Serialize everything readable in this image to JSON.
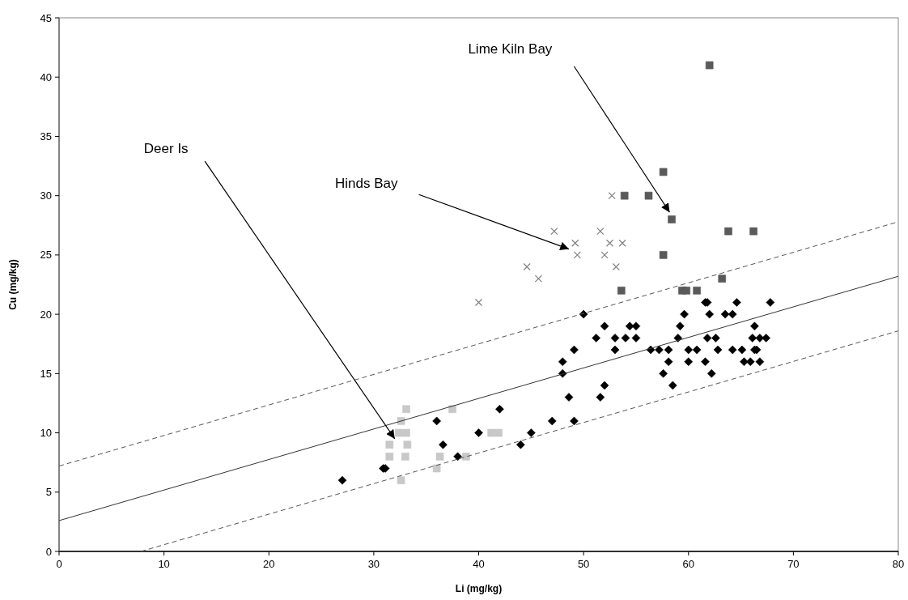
{
  "chart_data": {
    "type": "scatter",
    "xlabel": "Li (mg/kg)",
    "ylabel": "Cu (mg/kg)",
    "xlim": [
      0,
      80
    ],
    "ylim": [
      0,
      45
    ],
    "xticks": [
      0,
      10,
      20,
      30,
      40,
      50,
      60,
      70,
      80
    ],
    "yticks": [
      0,
      5,
      10,
      15,
      20,
      25,
      30,
      35,
      40,
      45
    ],
    "grid": false,
    "series": [
      {
        "marker": "diamond",
        "color": "#000000",
        "x": [
          27,
          30.9,
          31.1,
          36,
          36.6,
          38,
          40,
          42,
          44,
          45,
          47,
          48,
          48,
          48.6,
          49.1,
          49.1,
          50,
          51.2,
          51.6,
          52,
          52,
          53,
          53,
          54,
          54.4,
          55,
          55,
          56.4,
          57.2,
          57.6,
          58.1,
          58.1,
          58.5,
          59,
          59.2,
          59.6,
          60,
          60,
          60.8,
          61.6,
          61.8,
          61.6,
          61.8,
          62,
          62.2,
          62.6,
          62.8,
          63.5,
          64.2,
          64.2,
          64.6,
          65.1,
          65.3,
          65.9,
          66.3,
          66.1,
          66.5,
          66.3,
          66.8,
          66.8,
          67.4,
          67.8
        ],
        "values": [
          6,
          7,
          7,
          11,
          9,
          8,
          10,
          12,
          9,
          10,
          11,
          16,
          15,
          13,
          17,
          11,
          20,
          18,
          13,
          19,
          14,
          18,
          17,
          18,
          19,
          19,
          18,
          17,
          17,
          15,
          17,
          16,
          14,
          18,
          19,
          20,
          17,
          16,
          17,
          21,
          21,
          16,
          18,
          20,
          15,
          18,
          17,
          20,
          20,
          17,
          21,
          17,
          16,
          16,
          19,
          18,
          17,
          17,
          16,
          18,
          18,
          21
        ]
      },
      {
        "marker": "cross",
        "color": "#808080",
        "x": [
          52.7,
          47.2,
          51.6,
          49.2,
          52.5,
          53.7,
          49.4,
          52,
          53.1,
          44.6,
          45.7,
          40
        ],
        "values": [
          30,
          27,
          27,
          26,
          26,
          26,
          25,
          25,
          24,
          24,
          23,
          21
        ]
      },
      {
        "marker": "square",
        "color": "#5a5a5a",
        "x": [
          62,
          57.6,
          53.9,
          56.2,
          58.4,
          63.8,
          66.2,
          57.6,
          63.2,
          53.6,
          59.4,
          59.8,
          60.8
        ],
        "values": [
          41,
          32,
          30,
          30,
          28,
          27,
          27,
          25,
          23,
          22,
          22,
          22,
          22
        ]
      },
      {
        "marker": "square",
        "color": "#c8c8c8",
        "x": [
          32.6,
          32.4,
          33.1,
          31.5,
          33.2,
          31.5,
          33,
          32.6,
          36,
          36.3,
          33.1,
          37.5,
          41.2,
          41.9,
          38.8
        ],
        "values": [
          11,
          10,
          10,
          9,
          9,
          8,
          8,
          6,
          7,
          8,
          12,
          12,
          10,
          10,
          8
        ]
      },
      {
        "type": "line",
        "line_style": "solid",
        "color": "#333333",
        "x": [
          0,
          80
        ],
        "values": [
          2.6,
          23.2
        ]
      },
      {
        "type": "line",
        "line_style": "dashed",
        "color": "#555555",
        "x": [
          0,
          80
        ],
        "values": [
          7.2,
          27.8
        ]
      },
      {
        "type": "line",
        "line_style": "dashed",
        "color": "#555555",
        "x": [
          7.8,
          80
        ],
        "values": [
          0,
          18.6
        ]
      }
    ],
    "annotations": [
      "Deer Is",
      "Hinds Bay",
      "Lime Kiln Bay"
    ]
  }
}
